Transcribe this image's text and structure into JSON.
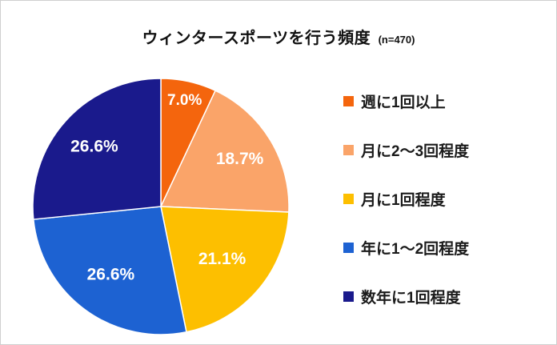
{
  "chart_data": {
    "type": "pie",
    "title": "ウィンタースポーツを行う頻度",
    "sample_size_label": "(n=470)",
    "legend_position": "right",
    "start_angle_deg": 0,
    "direction": "clockwise",
    "value_label_format": "percent_1dp",
    "value_label_color": "#FFFFFF",
    "slice_border_color": "#FFFFFF",
    "segments": [
      {
        "label": "週に1回以上",
        "value": 7.0,
        "color": "#F4650D"
      },
      {
        "label": "月に2～3回程度",
        "value": 18.7,
        "color": "#FAA469"
      },
      {
        "label": "月に1回程度",
        "value": 21.1,
        "color": "#FDBF00"
      },
      {
        "label": "年に1～2回程度",
        "value": 26.6,
        "color": "#1D62D2"
      },
      {
        "label": "数年に1回程度",
        "value": 26.6,
        "color": "#1A1A8C"
      }
    ],
    "label_radius_fractions": [
      0.85,
      0.72,
      0.63,
      0.66,
      0.7
    ]
  }
}
